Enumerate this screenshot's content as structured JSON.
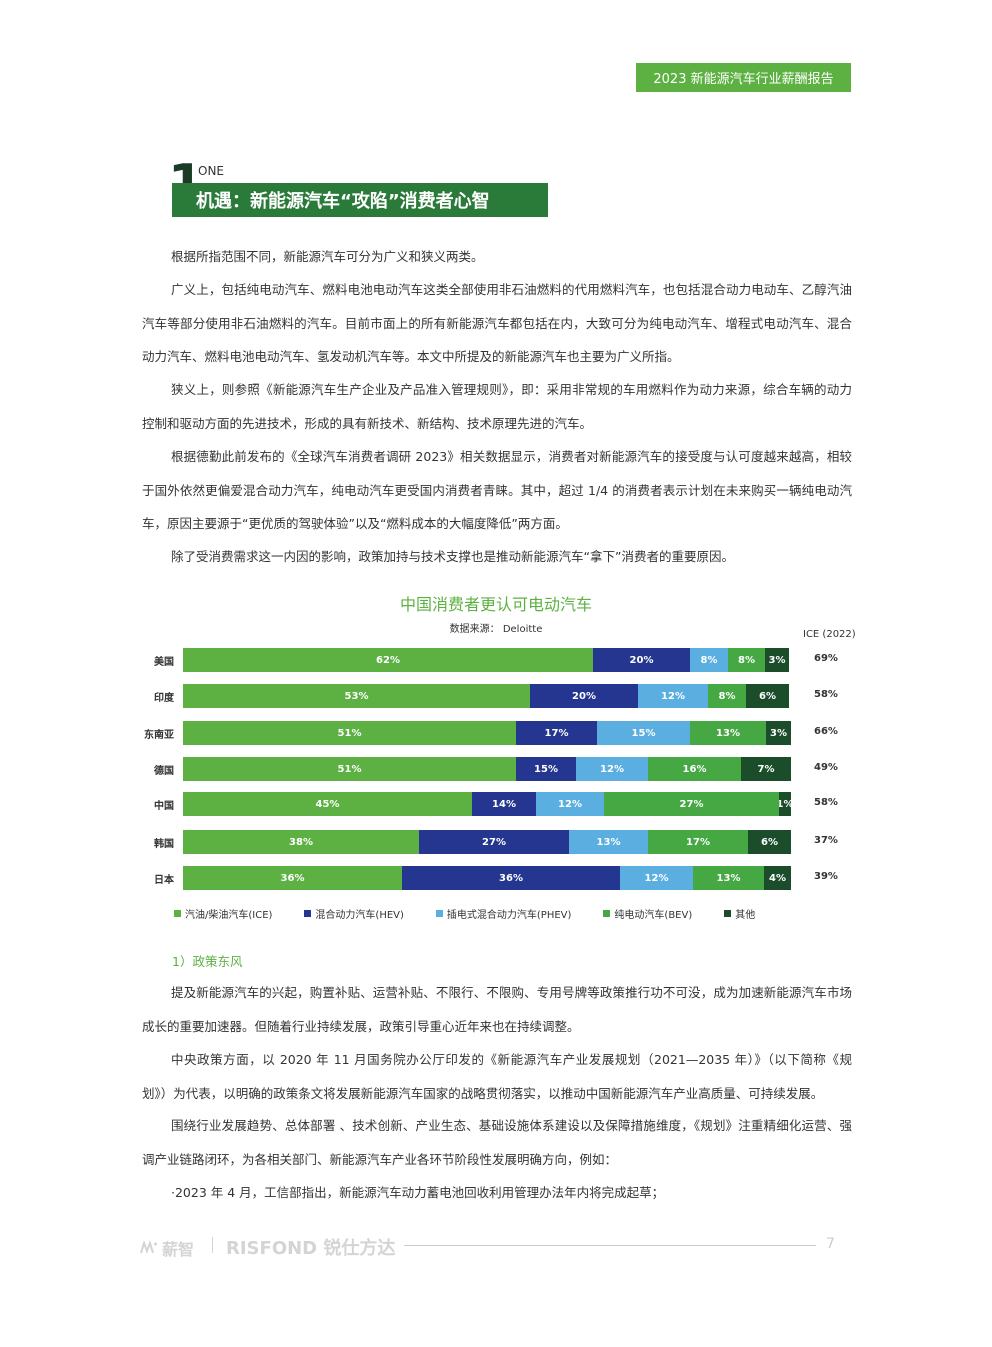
{
  "header": {
    "report_title": "2023 新能源汽车行业薪酬报告"
  },
  "section": {
    "number": "1",
    "eng": "ONE",
    "title": "机遇：新能源汽车“攻陷”消费者心智"
  },
  "paragraphs": [
    "根据所指范围不同，新能源汽车可分为广义和狭义两类。",
    "广义上，包括纯电动汽车、燃料电池电动汽车这类全部使用非石油燃料的代用燃料汽车，也包括混合动力电动车、乙醇汽油汽车等部分使用非石油燃料的汽车。目前市面上的所有新能源汽车都包括在内，大致可分为纯电动汽车、增程式电动汽车、混合动力汽车、燃料电池电动汽车、氢发动机汽车等。本文中所提及的新能源汽车也主要为广义所指。",
    "狭义上，则参照《新能源汽车生产企业及产品准入管理规则》，即：采用非常规的车用燃料作为动力来源，综合车辆的动力控制和驱动方面的先进技术，形成的具有新技术、新结构、技术原理先进的汽车。",
    "根据德勤此前发布的《全球汽车消费者调研 2023》相关数据显示，消费者对新能源汽车的接受度与认可度越来越高，相较于国外依然更偏爱混合动力汽车，纯电动汽车更受国内消费者青睐。其中，超过 1/4 的消费者表示计划在未来购买一辆纯电动汽车，原因主要源于“更优质的驾驶体验”以及“燃料成本的大幅度降低”两方面。",
    "除了受消费需求这一内因的影响，政策加持与技术支撑也是推动新能源汽车“拿下”消费者的重要原因。"
  ],
  "chart_data": {
    "type": "bar",
    "stacked": true,
    "orientation": "horizontal",
    "title": "中国消费者更认可电动汽车",
    "subtitle": "数据来源： Deloitte",
    "right_column_header": "ICE (2022)",
    "categories": [
      "美国",
      "印度",
      "东南亚",
      "德国",
      "中国",
      "韩国",
      "日本"
    ],
    "series": [
      {
        "name": "汽油/柴油汽车(ICE)",
        "color": "#5cb142",
        "values": [
          62,
          53,
          51,
          51,
          45,
          38,
          36
        ]
      },
      {
        "name": "混合动力汽车(HEV)",
        "color": "#24368f",
        "values": [
          20,
          20,
          17,
          15,
          14,
          27,
          36
        ]
      },
      {
        "name": "插电式混合动力汽车(PHEV)",
        "color": "#5aaee0",
        "values": [
          8,
          12,
          15,
          12,
          12,
          13,
          12
        ]
      },
      {
        "name": "纯电动汽车(BEV)",
        "color": "#45a843",
        "values": [
          8,
          8,
          13,
          16,
          27,
          17,
          13
        ]
      },
      {
        "name": "其他",
        "color": "#1b4d2b",
        "values": [
          3,
          6,
          3,
          7,
          1,
          6,
          4
        ]
      }
    ],
    "ice_2022": [
      "69%",
      "58%",
      "66%",
      "49%",
      "58%",
      "37%",
      "39%"
    ],
    "display_widths": [
      [
        410,
        97,
        38,
        37,
        24
      ],
      [
        347,
        108,
        70,
        38,
        43
      ],
      [
        333,
        81,
        93,
        76,
        25
      ],
      [
        333,
        60,
        72,
        93,
        50
      ],
      [
        289,
        64,
        68,
        175,
        12
      ],
      [
        236,
        150,
        79,
        100,
        43
      ],
      [
        219,
        218,
        73,
        71,
        27
      ]
    ]
  },
  "subheading": "1）政策东风",
  "paragraphs2": [
    "提及新能源汽车的兴起，购置补贴、运营补贴、不限行、不限购、专用号牌等政策推行功不可没，成为加速新能源汽车市场成长的重要加速器。但随着行业持续发展，政策引导重心近年来也在持续调整。",
    "中央政策方面，以 2020 年 11 月国务院办公厅印发的《新能源汽车产业发展规划（2021—2035 年）》（以下简称《规划》）为代表，以明确的政策条文将发展新能源汽车国家的战略贯彻落实，以推动中国新能源汽车产业高质量、可持续发展。",
    "围绕行业发展趋势、总体部署 、技术创新、产业生态、基础设施体系建设以及保障措施维度，《规划》注重精细化运营、强调产业链路闭环，为各相关部门、新能源汽车产业各环节阶段性发展明确方向，例如：",
    "·2023 年 4 月，工信部指出，新能源汽车动力蓄电池回收利用管理办法年内将完成起草；"
  ],
  "footer": {
    "logo1": "薪智",
    "logo2": "RISFOND 锐仕方达",
    "page": "7"
  }
}
